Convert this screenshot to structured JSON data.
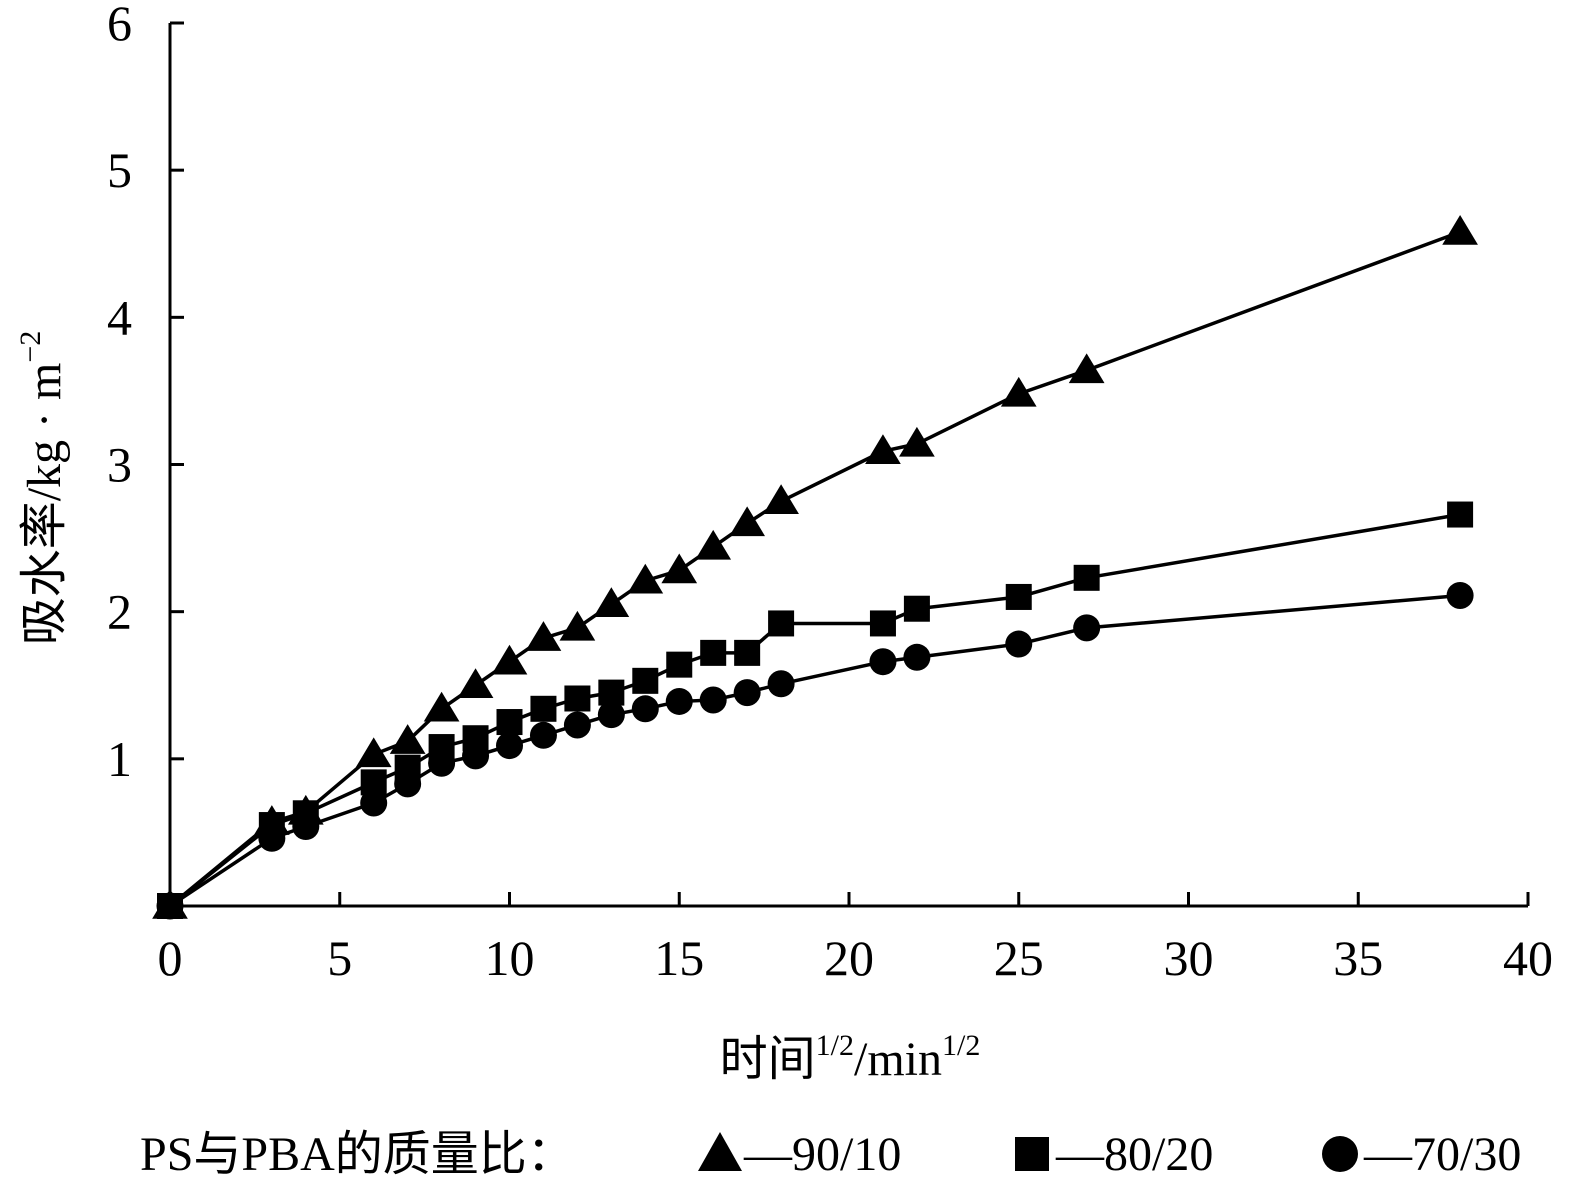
{
  "chart_data": {
    "type": "line",
    "title": "",
    "xlabel": "时间",
    "xlabel_sup1": "1/2",
    "xlabel_unit": "/min",
    "xlabel_sup2": "1/2",
    "ylabel": "吸水率/kg · m",
    "ylabel_sup": "−2",
    "xlim": [
      0,
      40
    ],
    "ylim": [
      0,
      6
    ],
    "xticks": [
      0,
      5,
      10,
      15,
      20,
      25,
      30,
      35,
      40
    ],
    "yticks": [
      1,
      2,
      3,
      4,
      5,
      6
    ],
    "xtick_labels": [
      "0",
      "5",
      "10",
      "15",
      "20",
      "25",
      "30",
      "35",
      "40"
    ],
    "ytick_labels": [
      "1",
      "2",
      "3",
      "4",
      "5",
      "6"
    ],
    "grid": false,
    "legend_position": "bottom",
    "legend_prefix": "PS与PBA的质量比：",
    "legend_dash": "—",
    "series": [
      {
        "name": "90/10",
        "marker": "triangle",
        "x": [
          0,
          3,
          4,
          6,
          7,
          8,
          9,
          10,
          11,
          12,
          13,
          14,
          15,
          16,
          17,
          18,
          21,
          22,
          25,
          27,
          38
        ],
        "y": [
          0,
          0.57,
          0.64,
          1.03,
          1.12,
          1.34,
          1.5,
          1.66,
          1.82,
          1.89,
          2.05,
          2.21,
          2.28,
          2.44,
          2.6,
          2.75,
          3.09,
          3.14,
          3.48,
          3.64,
          4.58
        ]
      },
      {
        "name": "80/20",
        "marker": "square",
        "x": [
          0,
          3,
          4,
          6,
          7,
          8,
          9,
          10,
          11,
          12,
          13,
          14,
          15,
          16,
          17,
          18,
          21,
          22,
          25,
          27,
          38
        ],
        "y": [
          0,
          0.55,
          0.63,
          0.84,
          0.94,
          1.08,
          1.14,
          1.25,
          1.34,
          1.41,
          1.45,
          1.53,
          1.64,
          1.72,
          1.72,
          1.92,
          1.92,
          2.02,
          2.1,
          2.23,
          2.66
        ]
      },
      {
        "name": "70/30",
        "marker": "circle",
        "x": [
          0,
          3,
          4,
          6,
          7,
          8,
          9,
          10,
          11,
          12,
          13,
          14,
          15,
          16,
          17,
          18,
          21,
          22,
          25,
          27,
          38
        ],
        "y": [
          0,
          0.46,
          0.54,
          0.7,
          0.83,
          0.97,
          1.02,
          1.09,
          1.16,
          1.23,
          1.3,
          1.34,
          1.39,
          1.4,
          1.45,
          1.51,
          1.66,
          1.69,
          1.78,
          1.89,
          2.11
        ]
      }
    ]
  }
}
